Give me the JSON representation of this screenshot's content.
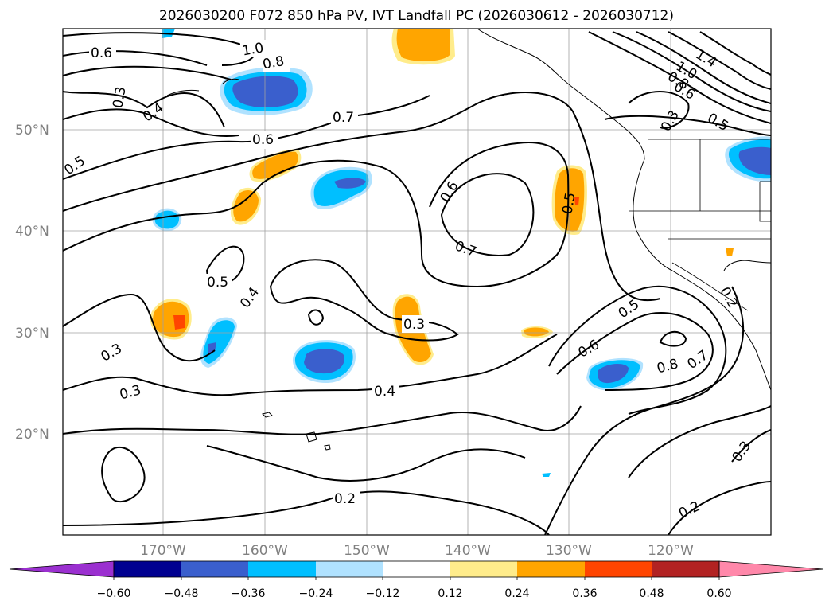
{
  "title": "2026030200 F072 850 hPa PV, IVT Landfall PC (2026030612 - 2026030712)",
  "lat_labels": [
    "50°N",
    "40°N",
    "30°N",
    "20°N"
  ],
  "lon_labels": [
    "170°W",
    "160°W",
    "150°W",
    "140°W",
    "130°W",
    "120°W"
  ],
  "contour_labels": [
    "0.6",
    "1.0",
    "0.8",
    "0.3",
    "0.4",
    "0.5",
    "0.7",
    "0.6",
    "0.6",
    "0.7",
    "0.5",
    "0.5",
    "0.4",
    "0.3",
    "0.3",
    "0.4",
    "0.3",
    "0.2",
    "0.2",
    "0.5",
    "0.6",
    "0.8",
    "0.7",
    "0.3",
    "1.4",
    "1.0",
    "0.8",
    "0.6",
    "0.3",
    "0.5",
    "0.2"
  ],
  "colorbar": {
    "ticks": [
      "−0.60",
      "−0.48",
      "−0.36",
      "−0.24",
      "−0.12",
      "0.12",
      "0.24",
      "0.36",
      "0.48",
      "0.60"
    ],
    "colors": [
      "#9b30d0",
      "#000090",
      "#3a5fcd",
      "#00bfff",
      "#b0e2ff",
      "#ffffff",
      "#ffec8b",
      "#ffa500",
      "#ff4500",
      "#b22222",
      "#ff88aa"
    ]
  }
}
